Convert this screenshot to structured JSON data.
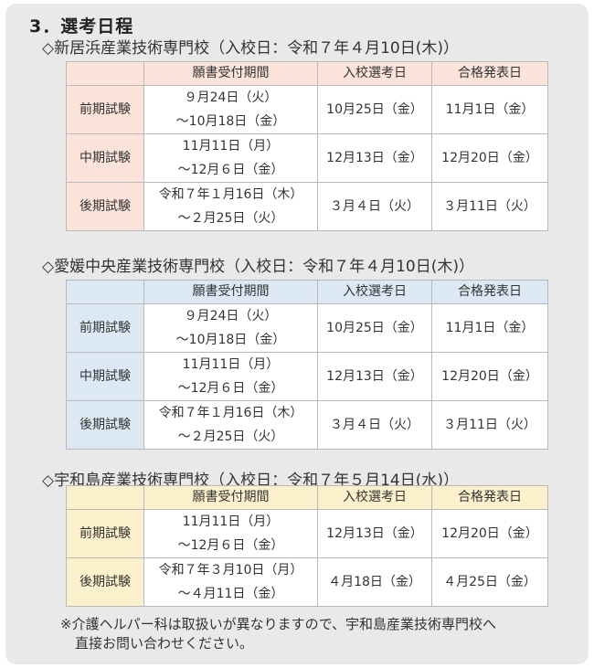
{
  "title": "3．選考日程",
  "headers": [
    "",
    "願書受付期間",
    "入校選考日",
    "合格発表日"
  ],
  "schools": [
    {
      "name": "◇新居浜産業技術専門校（入校日：令和７年４月10日(木)）",
      "color": "#fce3da",
      "rows": [
        {
          "label": "前期試験",
          "period": [
            "９月24日（火）",
            "～10月18日（金）"
          ],
          "exam": "10月25日（金）",
          "result": "11月1日（金）"
        },
        {
          "label": "中期試験",
          "period": [
            "11月11日（月）",
            "～12月６日（金）"
          ],
          "exam": "12月13日（金）",
          "result": "12月20日（金）"
        },
        {
          "label": "後期試験",
          "period": [
            "令和７年１月16日（木）",
            "～２月25日（火）"
          ],
          "exam": "３月４日（火）",
          "result": "３月11日（火）"
        }
      ]
    },
    {
      "name": "◇愛媛中央産業技術専門校（入校日：令和７年４月10日(木)）",
      "color": "#dce8f4",
      "rows": [
        {
          "label": "前期試験",
          "period": [
            "９月24日（火）",
            "～10月18日（金）"
          ],
          "exam": "10月25日（金）",
          "result": "11月1日（金）"
        },
        {
          "label": "中期試験",
          "period": [
            "11月11日（月）",
            "～12月６日（金）"
          ],
          "exam": "12月13日（金）",
          "result": "12月20日（金）"
        },
        {
          "label": "後期試験",
          "period": [
            "令和７年１月16日（木）",
            "～２月25日（火）"
          ],
          "exam": "３月４日（火）",
          "result": "３月11日（火）"
        }
      ]
    },
    {
      "name": "◇宇和島産業技術専門校（入校日：令和７年５月14日(水)）",
      "color": "#fdf0cd",
      "rows": [
        {
          "label": "前期試験",
          "period": [
            "11月11日（月）",
            "～12月６日（金）"
          ],
          "exam": "12月13日（金）",
          "result": "12月20日（金）"
        },
        {
          "label": "後期試験",
          "period": [
            "令和７年３月10日（月）",
            "～４月11日（金）"
          ],
          "exam": "４月18日（金）",
          "result": "４月25日（金）"
        }
      ]
    }
  ],
  "note": [
    "※介護ヘルパー科は取扱いが異なりますので、宇和島産業技術専門校へ",
    "直接お問い合わせください。"
  ]
}
